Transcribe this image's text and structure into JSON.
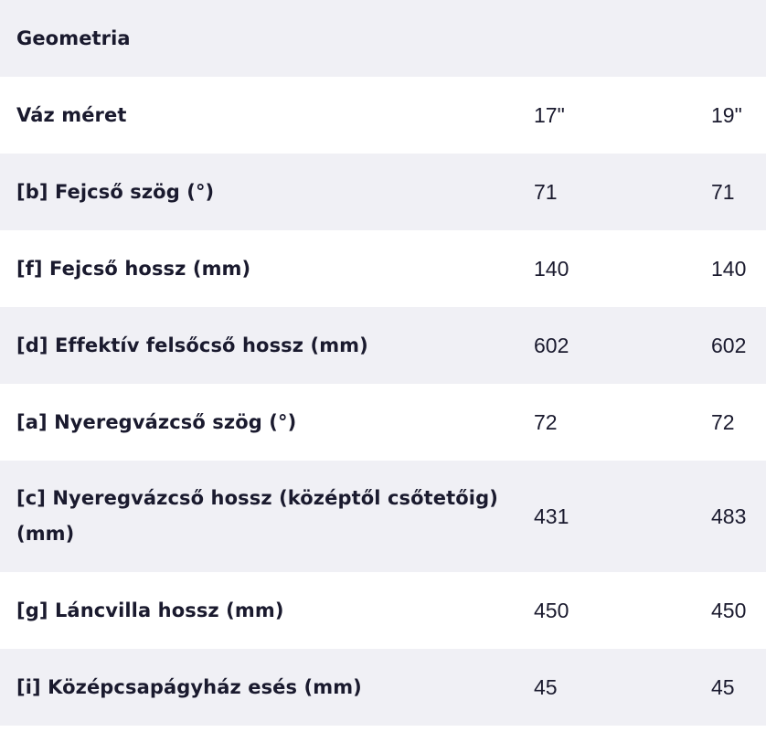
{
  "table": {
    "header": "Geometria",
    "rows": [
      {
        "label": "Váz méret",
        "v1": "17\"",
        "v2": "19\""
      },
      {
        "label": "[b] Fejcső szög (°)",
        "v1": "71",
        "v2": "71"
      },
      {
        "label": "[f] Fejcső hossz (mm)",
        "v1": "140",
        "v2": "140"
      },
      {
        "label": "[d] Effektív felsőcső hossz (mm)",
        "v1": "602",
        "v2": "602"
      },
      {
        "label": "[a] Nyeregvázcső szög (°)",
        "v1": "72",
        "v2": "72"
      },
      {
        "label": "[c] Nyeregvázcső hossz (középtől csőtetőig) (mm)",
        "v1": "431",
        "v2": "483"
      },
      {
        "label": "[g] Láncvilla hossz (mm)",
        "v1": "450",
        "v2": "450"
      },
      {
        "label": "[i] Középcsapágyház esés (mm)",
        "v1": "45",
        "v2": "45"
      }
    ]
  },
  "colors": {
    "shade_row": "#f0f0f5",
    "plain_row": "#ffffff",
    "text": "#1a1a2e"
  }
}
